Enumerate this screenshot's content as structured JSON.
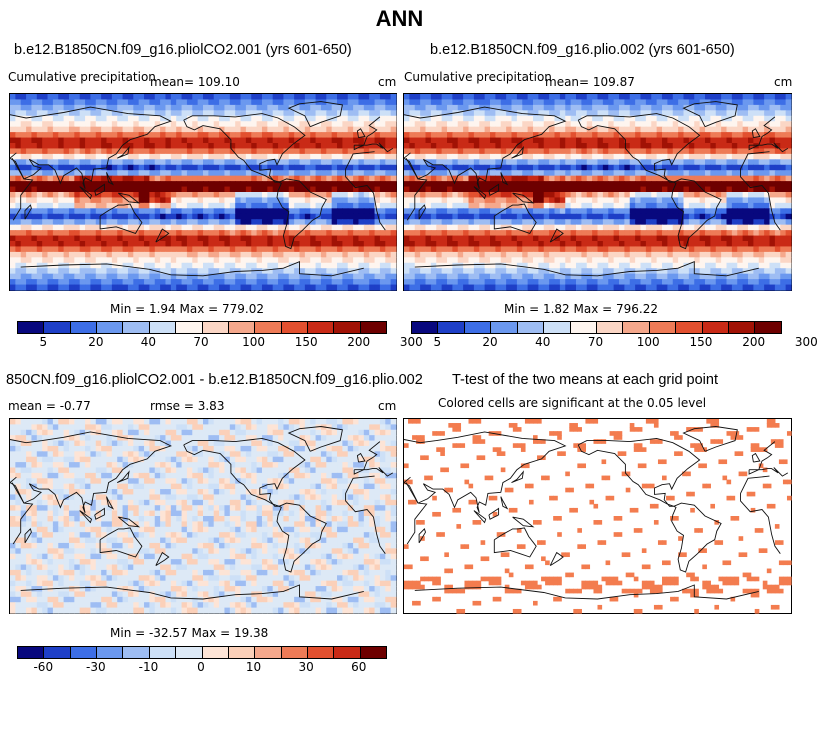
{
  "page": {
    "title": "ANN"
  },
  "panels": [
    {
      "title": "b.e12.B1850CN.f09_g16.pliolCO2.001 (yrs 601-650)",
      "left_label": "Cumulative precipitation",
      "mean_label": "mean= 109.10",
      "unit": "cm",
      "stats": "Min =    1.94 Max = 779.02",
      "colorbar_labels": [
        "5",
        "20",
        "40",
        "70",
        "100",
        "150",
        "200",
        "300"
      ]
    },
    {
      "title": "b.e12.B1850CN.f09_g16.plio.002 (yrs 601-650)",
      "left_label": "Cumulative precipitation",
      "mean_label": "mean= 109.87",
      "unit": "cm",
      "stats": "Min =    1.82 Max = 796.22",
      "colorbar_labels": [
        "5",
        "20",
        "40",
        "70",
        "100",
        "150",
        "200",
        "300"
      ]
    },
    {
      "title": "850CN.f09_g16.pliolCO2.001 - b.e12.B1850CN.f09_g16.plio.002",
      "mean_label": "mean =   -0.77",
      "rmse_label": "rmse =    3.83",
      "unit": "cm",
      "stats": "Min = -32.57 Max =  19.38",
      "colorbar_labels": [
        "-60",
        "-30",
        "-10",
        "0",
        "10",
        "30",
        "60"
      ]
    },
    {
      "title": "T-test of the two means at each grid point",
      "subtitle": "Colored cells are significant at the 0.05 level"
    }
  ],
  "colors": {
    "precip_scale": [
      "#08087e",
      "#1e3fc7",
      "#3d6ee6",
      "#6b98ef",
      "#9ebdf3",
      "#cde0f7",
      "#fef5ef",
      "#fbd6c5",
      "#f5a88c",
      "#ee7b57",
      "#e2502f",
      "#c92a16",
      "#a11205",
      "#6e0000"
    ],
    "diff_scale": [
      "#08087e",
      "#1e3fc7",
      "#3d6ee6",
      "#6b98ef",
      "#9ebdf3",
      "#cde0f7",
      "#dde9f6",
      "#fde4d6",
      "#fbd0b9",
      "#f5a88c",
      "#ee7b57",
      "#e2502f",
      "#c92a16",
      "#6e0000"
    ],
    "significant": "#f37c4f"
  }
}
